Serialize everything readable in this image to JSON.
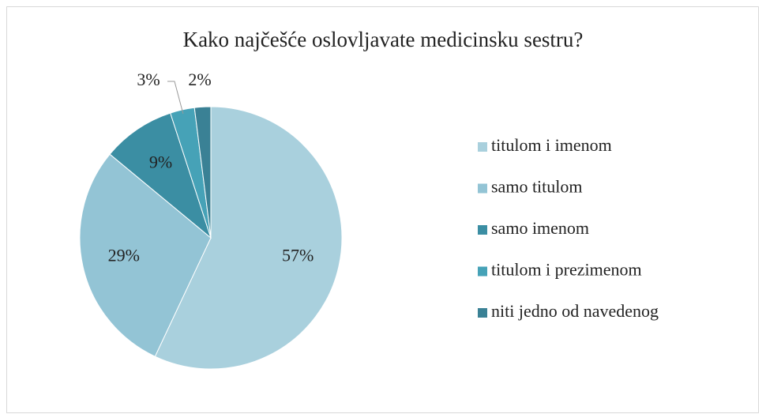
{
  "chart_data": {
    "type": "pie",
    "title": "Kako najčešće oslovljavate medicinsku sestru?",
    "categories": [
      "titulom i imenom",
      "samo titulom",
      "samo imenom",
      "titulom i prezimenom",
      "niti jedno od navedenog"
    ],
    "values": [
      57,
      29,
      9,
      3,
      2
    ],
    "value_labels": [
      "57%",
      "29%",
      "9%",
      "3%",
      "2%"
    ],
    "colors": [
      "#a9d0dd",
      "#93c4d5",
      "#3b8ea3",
      "#46a2b7",
      "#3a8195"
    ],
    "legend": "right"
  }
}
